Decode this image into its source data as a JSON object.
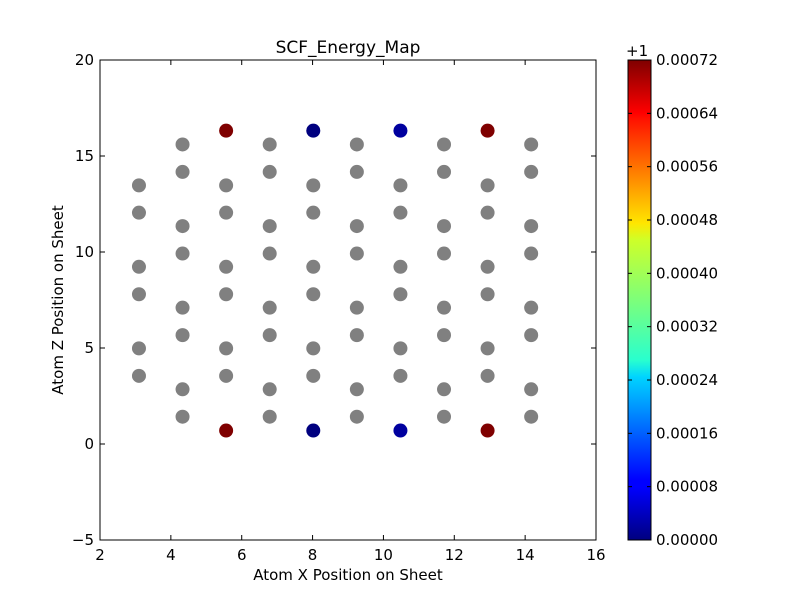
{
  "chart_data": {
    "type": "scatter",
    "title": "SCF_Energy_Map",
    "xlabel": "Atom X Position on Sheet",
    "ylabel": "Atom Z Position on Sheet",
    "xlim": [
      2,
      16
    ],
    "ylim": [
      -5,
      20
    ],
    "xticks": [
      "2",
      "4",
      "6",
      "8",
      "10",
      "12",
      "14",
      "16"
    ],
    "yticks": [
      "−5",
      "0",
      "5",
      "10",
      "15",
      "20"
    ],
    "grid": false,
    "marker_color_neutral": "#808080",
    "points_neutral": [
      [
        3.1,
        3.55
      ],
      [
        3.1,
        4.98
      ],
      [
        3.1,
        7.8
      ],
      [
        3.1,
        9.23
      ],
      [
        3.1,
        12.05
      ],
      [
        3.1,
        13.47
      ],
      [
        4.33,
        1.42
      ],
      [
        4.33,
        2.85
      ],
      [
        4.33,
        5.67
      ],
      [
        4.33,
        7.1
      ],
      [
        4.33,
        9.92
      ],
      [
        4.33,
        11.35
      ],
      [
        4.33,
        14.17
      ],
      [
        4.33,
        15.6
      ],
      [
        5.56,
        3.55
      ],
      [
        5.56,
        4.98
      ],
      [
        5.56,
        7.8
      ],
      [
        5.56,
        9.23
      ],
      [
        5.56,
        12.05
      ],
      [
        5.56,
        13.47
      ],
      [
        6.79,
        1.42
      ],
      [
        6.79,
        2.85
      ],
      [
        6.79,
        5.67
      ],
      [
        6.79,
        7.1
      ],
      [
        6.79,
        9.92
      ],
      [
        6.79,
        11.35
      ],
      [
        6.79,
        14.17
      ],
      [
        6.79,
        15.6
      ],
      [
        8.02,
        3.55
      ],
      [
        8.02,
        4.98
      ],
      [
        8.02,
        7.8
      ],
      [
        8.02,
        9.23
      ],
      [
        8.02,
        12.05
      ],
      [
        8.02,
        13.47
      ],
      [
        9.25,
        1.42
      ],
      [
        9.25,
        2.85
      ],
      [
        9.25,
        5.67
      ],
      [
        9.25,
        7.1
      ],
      [
        9.25,
        9.92
      ],
      [
        9.25,
        11.35
      ],
      [
        9.25,
        14.17
      ],
      [
        9.25,
        15.6
      ],
      [
        10.48,
        3.55
      ],
      [
        10.48,
        4.98
      ],
      [
        10.48,
        7.8
      ],
      [
        10.48,
        9.23
      ],
      [
        10.48,
        12.05
      ],
      [
        10.48,
        13.47
      ],
      [
        11.71,
        1.42
      ],
      [
        11.71,
        2.85
      ],
      [
        11.71,
        5.67
      ],
      [
        11.71,
        7.1
      ],
      [
        11.71,
        9.92
      ],
      [
        11.71,
        11.35
      ],
      [
        11.71,
        14.17
      ],
      [
        11.71,
        15.6
      ],
      [
        12.94,
        3.55
      ],
      [
        12.94,
        4.98
      ],
      [
        12.94,
        7.8
      ],
      [
        12.94,
        9.23
      ],
      [
        12.94,
        12.05
      ],
      [
        12.94,
        13.47
      ],
      [
        14.17,
        1.42
      ],
      [
        14.17,
        2.85
      ],
      [
        14.17,
        5.67
      ],
      [
        14.17,
        7.1
      ],
      [
        14.17,
        9.92
      ],
      [
        14.17,
        11.35
      ],
      [
        14.17,
        14.17
      ],
      [
        14.17,
        15.6
      ]
    ],
    "points_colored": [
      {
        "x": 5.56,
        "y": 16.32,
        "value": 0.00072
      },
      {
        "x": 8.02,
        "y": 16.32,
        "value": 0.0
      },
      {
        "x": 10.48,
        "y": 16.32,
        "value": 2e-05
      },
      {
        "x": 12.94,
        "y": 16.32,
        "value": 0.00072
      },
      {
        "x": 5.56,
        "y": 0.7,
        "value": 0.00072
      },
      {
        "x": 8.02,
        "y": 0.7,
        "value": 0.0
      },
      {
        "x": 10.48,
        "y": 0.7,
        "value": 2e-05
      },
      {
        "x": 12.94,
        "y": 0.7,
        "value": 0.00072
      }
    ],
    "colorbar": {
      "colormap": "jet",
      "range": [
        0.0,
        0.00072
      ],
      "offset_label": "+1",
      "ticks": [
        0.0,
        8e-05,
        0.00016,
        0.00024,
        0.00032,
        0.0004,
        0.00048,
        0.00056,
        0.00064,
        0.00072
      ],
      "tick_labels": [
        "0.00000",
        "0.00008",
        "0.00016",
        "0.00024",
        "0.00032",
        "0.00040",
        "0.00048",
        "0.00056",
        "0.00064",
        "0.00072"
      ]
    }
  }
}
